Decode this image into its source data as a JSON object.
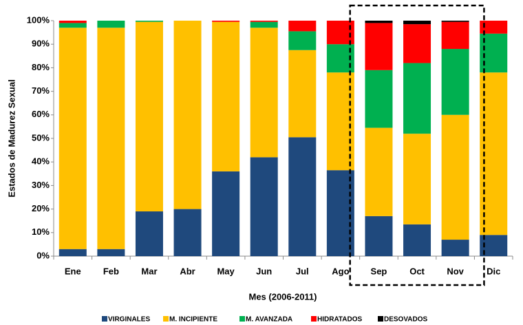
{
  "chart_data": {
    "type": "stacked_bar",
    "y_label": "Estados de Madurez Sexual",
    "x_label": "Mes (2006-2011)",
    "categories": [
      "Ene",
      "Feb",
      "Mar",
      "Abr",
      "May",
      "Jun",
      "Jul",
      "Ago",
      "Sep",
      "Oct",
      "Nov",
      "Dic"
    ],
    "series": [
      {
        "name": "VIRGINALES",
        "color": "#1f497d",
        "values": [
          3,
          3,
          19,
          20,
          36,
          42,
          50.5,
          36.5,
          17,
          13.5,
          7,
          9
        ]
      },
      {
        "name": "M. INCIPIENTE",
        "color": "#ffc000",
        "values": [
          94,
          94,
          80.5,
          80,
          63.5,
          55,
          37,
          41.5,
          37.5,
          38.5,
          53,
          69
        ]
      },
      {
        "name": "M. AVANZADA",
        "color": "#00b050",
        "values": [
          2,
          3,
          0.5,
          0,
          0,
          2.5,
          8,
          12,
          24.5,
          30,
          28,
          16.5
        ]
      },
      {
        "name": "HIDRATADOS",
        "color": "#ff0000",
        "values": [
          1,
          0,
          0,
          0,
          0.5,
          0.5,
          4.5,
          10,
          20,
          16.5,
          11.5,
          5.5
        ]
      },
      {
        "name": "DESOVADOS",
        "color": "#000000",
        "values": [
          0,
          0,
          0,
          0,
          0,
          0,
          0,
          0,
          1,
          1.5,
          0.5,
          0
        ]
      }
    ],
    "ylim": [
      0,
      100
    ],
    "yticks": [
      {
        "value": 0,
        "label": "0%"
      },
      {
        "value": 10,
        "label": "10%"
      },
      {
        "value": 20,
        "label": "20%"
      },
      {
        "value": 30,
        "label": "30%"
      },
      {
        "value": 40,
        "label": "40%"
      },
      {
        "value": 50,
        "label": "50%"
      },
      {
        "value": 60,
        "label": "60%"
      },
      {
        "value": 70,
        "label": "70%"
      },
      {
        "value": 80,
        "label": "80%"
      },
      {
        "value": 90,
        "label": "90%"
      },
      {
        "value": 100,
        "label": "100%"
      }
    ],
    "legend": "bottom"
  }
}
